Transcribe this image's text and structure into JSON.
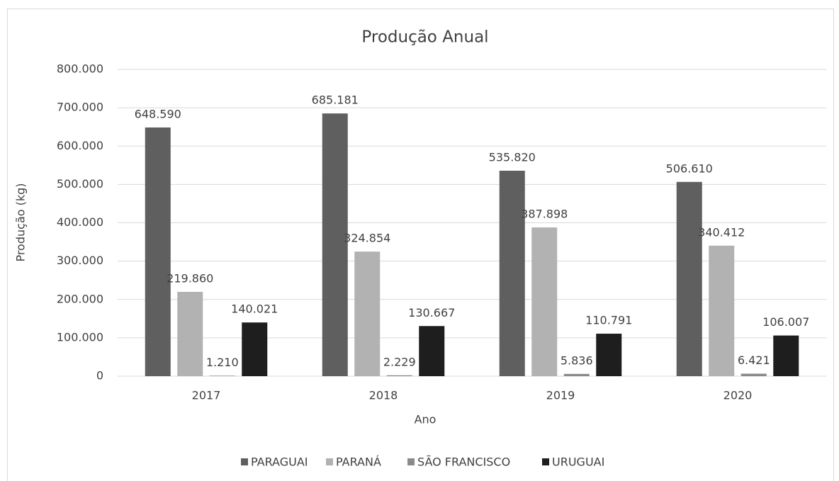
{
  "chart_data": {
    "type": "bar",
    "title": "Produção Anual",
    "x_label": "Ano",
    "y_label": "Produção (kg)",
    "categories": [
      "2017",
      "2018",
      "2019",
      "2020"
    ],
    "series": [
      {
        "name": "PARAGUAI",
        "color": "#5f5f5f",
        "values": [
          648590,
          685181,
          535820,
          506610
        ],
        "value_labels": [
          "648.590",
          "685.181",
          "535.820",
          "506.610"
        ]
      },
      {
        "name": "PARANÁ",
        "color": "#b2b2b2",
        "values": [
          219860,
          324854,
          387898,
          340412
        ],
        "value_labels": [
          "219.860",
          "324.854",
          "387.898",
          "340.412"
        ]
      },
      {
        "name": "SÃO FRANCISCO",
        "color": "#8a8a8a",
        "values": [
          1210,
          2229,
          5836,
          6421
        ],
        "value_labels": [
          "1.210",
          "2.229",
          "5.836",
          "6.421"
        ]
      },
      {
        "name": "URUGUAI",
        "color": "#1e1e1e",
        "values": [
          140021,
          130667,
          110791,
          106007
        ],
        "value_labels": [
          "140.021",
          "130.667",
          "110.791",
          "106.007"
        ]
      }
    ],
    "ylim": [
      0,
      800000
    ],
    "yticks": [
      0,
      {
        "value": 100000,
        "label": "100.000"
      },
      {
        "value": 200000,
        "label": "200.000"
      },
      {
        "value": 300000,
        "label": "300.000"
      },
      {
        "value": 400000,
        "label": "400.000"
      },
      {
        "value": 500000,
        "label": "500.000"
      },
      {
        "value": 600000,
        "label": "600.000"
      },
      {
        "value": 700000,
        "label": "700.000"
      },
      {
        "value": 800000,
        "label": "800.000"
      }
    ],
    "grid": true,
    "legend": "bottom"
  }
}
